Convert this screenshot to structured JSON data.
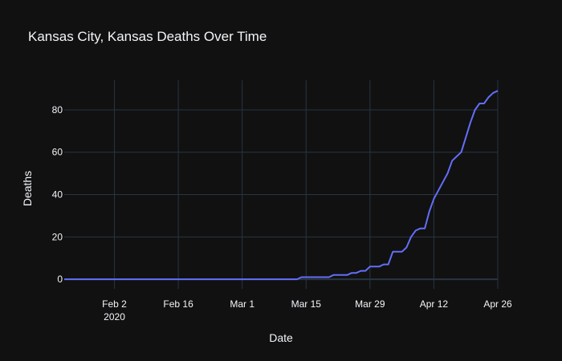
{
  "chart_data": {
    "type": "line",
    "title": "Kansas City, Kansas Deaths Over Time",
    "xlabel": "Date",
    "ylabel": "Deaths",
    "grid": true,
    "colors": {
      "background": "#111111",
      "grid": "#283442",
      "text": "#f2f5fa",
      "line": "#636efa"
    },
    "xlim": [
      "2020-01-22",
      "2020-04-26"
    ],
    "ylim": [
      -4.5,
      94
    ],
    "x_ticks": [
      {
        "date": "2020-02-02",
        "label": "Feb 2",
        "sublabel": "2020"
      },
      {
        "date": "2020-02-16",
        "label": "Feb 16",
        "sublabel": ""
      },
      {
        "date": "2020-03-01",
        "label": "Mar 1",
        "sublabel": ""
      },
      {
        "date": "2020-03-15",
        "label": "Mar 15",
        "sublabel": ""
      },
      {
        "date": "2020-03-29",
        "label": "Mar 29",
        "sublabel": ""
      },
      {
        "date": "2020-04-12",
        "label": "Apr 12",
        "sublabel": ""
      },
      {
        "date": "2020-04-26",
        "label": "Apr 26",
        "sublabel": ""
      }
    ],
    "y_ticks": [
      0,
      20,
      40,
      60,
      80
    ],
    "series": [
      {
        "x": [
          "2020-01-22",
          "2020-03-13",
          "2020-03-14",
          "2020-03-15",
          "2020-03-16",
          "2020-03-17",
          "2020-03-18",
          "2020-03-19",
          "2020-03-20",
          "2020-03-21",
          "2020-03-22",
          "2020-03-23",
          "2020-03-24",
          "2020-03-25",
          "2020-03-26",
          "2020-03-27",
          "2020-03-28",
          "2020-03-29",
          "2020-03-30",
          "2020-03-31",
          "2020-04-01",
          "2020-04-02",
          "2020-04-03",
          "2020-04-04",
          "2020-04-05",
          "2020-04-06",
          "2020-04-07",
          "2020-04-08",
          "2020-04-09",
          "2020-04-10",
          "2020-04-11",
          "2020-04-12",
          "2020-04-13",
          "2020-04-14",
          "2020-04-15",
          "2020-04-16",
          "2020-04-17",
          "2020-04-18",
          "2020-04-19",
          "2020-04-20",
          "2020-04-21",
          "2020-04-22",
          "2020-04-23",
          "2020-04-24",
          "2020-04-25",
          "2020-04-26"
        ],
        "y": [
          0,
          0,
          1,
          1,
          1,
          1,
          1,
          1,
          1,
          2,
          2,
          2,
          2,
          3,
          3,
          4,
          4,
          6,
          6,
          6,
          7,
          7,
          13,
          13,
          13,
          15,
          20,
          23,
          24,
          24,
          32,
          38,
          42,
          46,
          50,
          56,
          58,
          60,
          67,
          74,
          80,
          83,
          83,
          86,
          88,
          89
        ]
      }
    ]
  }
}
